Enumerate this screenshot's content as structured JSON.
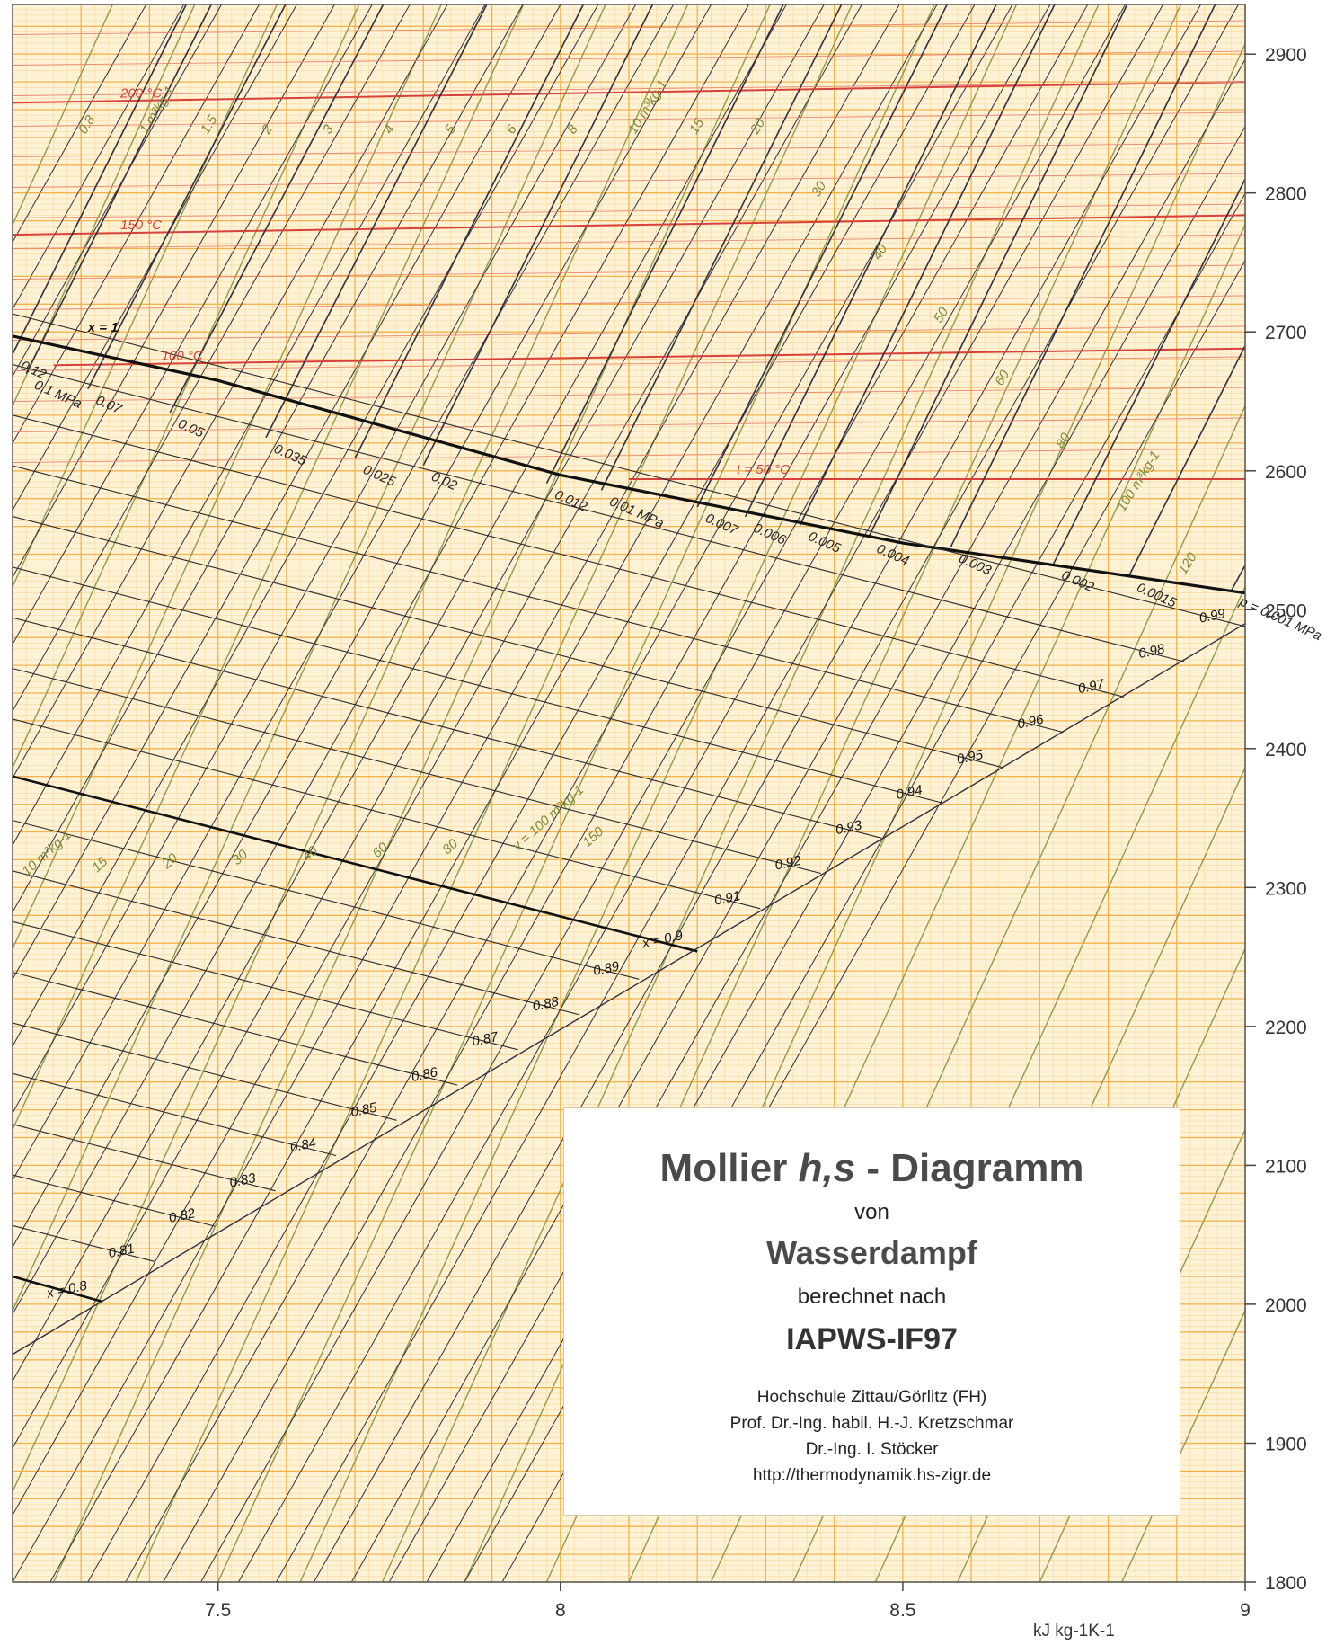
{
  "chart_data": {
    "type": "line",
    "title": "Mollier h,s - Diagramm",
    "xlabel": "kJ kg-1K-1",
    "ylabel": "",
    "xlim": [
      7.2,
      9.0
    ],
    "ylim": [
      1800,
      2920
    ],
    "grid": true,
    "x_ticks": [
      7.5,
      8,
      8.5,
      9
    ],
    "x_tick_labels": [
      "7.5",
      "8",
      "8.5",
      "9"
    ],
    "y_ticks": [
      1800,
      1900,
      2000,
      2100,
      2200,
      2300,
      2400,
      2500,
      2600,
      2700,
      2800,
      2900
    ],
    "y_tick_labels": [
      "1800",
      "1900",
      "2000",
      "2100",
      "2200",
      "2300",
      "2400",
      "2500",
      "2600",
      "2700",
      "2800",
      "2900"
    ],
    "saturation_line": {
      "label": "x = 1",
      "x": [
        7.2,
        7.5,
        8.0,
        8.5,
        9.0
      ],
      "y": [
        2697,
        2665,
        2597,
        2548,
        2512
      ]
    },
    "quality_lines": [
      {
        "label": "x = 0.9",
        "x": [
          7.2,
          8.2
        ],
        "y": [
          2380,
          2254
        ]
      },
      {
        "label": "x = 0.8",
        "x": [
          7.2,
          7.33
        ],
        "y": [
          2020,
          2002
        ]
      }
    ],
    "quality_labels": [
      "0.99",
      "0.98",
      "0.97",
      "0.96",
      "0.95",
      "0.94",
      "0.93",
      "0.92",
      "0.91",
      "0.89",
      "0.88",
      "0.87",
      "0.86",
      "0.85",
      "0.84",
      "0.83",
      "0.82",
      "0.81"
    ],
    "isobars": [
      {
        "label": "0.12",
        "x": [
          7.2,
          7.47
        ],
        "y": [
          2684,
          2952
        ]
      },
      {
        "label": "0.1 MPa",
        "x": [
          7.22,
          7.52
        ],
        "y": [
          2670,
          2965
        ]
      },
      {
        "label": "0.07",
        "x": [
          7.31,
          7.65
        ],
        "y": [
          2659,
          2985
        ]
      },
      {
        "label": "0.05",
        "x": [
          7.43,
          7.82
        ],
        "y": [
          2642,
          3010
        ]
      },
      {
        "label": "0.035",
        "x": [
          7.57,
          7.99
        ],
        "y": [
          2624,
          3030
        ]
      },
      {
        "label": "0.025",
        "x": [
          7.7,
          8.14
        ],
        "y": [
          2609,
          3040
        ]
      },
      {
        "label": "0.02",
        "x": [
          7.8,
          8.24
        ],
        "y": [
          2604,
          3040
        ]
      },
      {
        "label": "0.012",
        "x": [
          7.98,
          8.44
        ],
        "y": [
          2591,
          3050
        ]
      },
      {
        "label": "0.01 MPa",
        "x": [
          8.06,
          8.53
        ],
        "y": [
          2586,
          3055
        ]
      },
      {
        "label": "0.007",
        "x": [
          8.2,
          8.69
        ],
        "y": [
          2574,
          3060
        ]
      },
      {
        "label": "0.006",
        "x": [
          8.27,
          8.76
        ],
        "y": [
          2567,
          3060
        ]
      },
      {
        "label": "0.005",
        "x": [
          8.35,
          8.85
        ],
        "y": [
          2561,
          3065
        ]
      },
      {
        "label": "0.004",
        "x": [
          8.45,
          8.96
        ],
        "y": [
          2552,
          3070
        ]
      },
      {
        "label": "0.003",
        "x": [
          8.57,
          9.0
        ],
        "y": [
          2545,
          2980
        ]
      },
      {
        "label": "0.002",
        "x": [
          8.72,
          9.0
        ],
        "y": [
          2533,
          2810
        ]
      },
      {
        "label": "0.0015",
        "x": [
          8.83,
          9.0
        ],
        "y": [
          2524,
          2690
        ]
      },
      {
        "label": "p = 0.001 MPa",
        "x": [
          8.98,
          9.0
        ],
        "y": [
          2514,
          2532
        ]
      }
    ],
    "isotherms": [
      {
        "label": "200 °C",
        "x": [
          7.2,
          9.0
        ],
        "y": [
          2865,
          2880
        ]
      },
      {
        "label": "150 °C",
        "x": [
          7.2,
          9.0
        ],
        "y": [
          2770,
          2784
        ]
      },
      {
        "label": "100 °C",
        "x": [
          7.26,
          9.0
        ],
        "y": [
          2676,
          2688
        ]
      },
      {
        "label": "t = 50 °C",
        "x": [
          8.1,
          9.0
        ],
        "y": [
          2594,
          2594
        ]
      }
    ],
    "isochores_upper_labels": [
      "0.8",
      "1 m³kg-1",
      "1.5",
      "2",
      "3",
      "4",
      "5",
      "6",
      "8",
      "10 m³kg-1",
      "15",
      "20",
      "30",
      "40",
      "50",
      "60",
      "80",
      "100 m³kg-1",
      "120"
    ],
    "isochores_lower_labels": [
      "10 m³kg-1",
      "15",
      "20",
      "30",
      "40",
      "60",
      "80",
      "v = 100 m³kg-1",
      "150"
    ]
  },
  "title_box": {
    "line1_a": "Mollier ",
    "line1_b": "h,s",
    "line1_c": " - Diagramm",
    "von": "von",
    "line2": "Wasserdampf",
    "berechnet": "berechnet nach",
    "line3": "IAPWS-IF97",
    "credits": [
      "Hochschule Zittau/Görlitz (FH)",
      "Prof. Dr.-Ing. habil. H.-J. Kretzschmar",
      "Dr.-Ing. I. Stöcker",
      "http://thermodynamik.hs-zigr.de"
    ]
  },
  "colors": {
    "background": "#fdf1d6",
    "grid_major": "#f2b44a",
    "grid_minor": "#f7d99a",
    "isobar": "#2e2e3c",
    "isotherm": "#d8413a",
    "isochore": "#8f9a4c",
    "saturation": "#111111",
    "quality": "#2a2a2a"
  }
}
